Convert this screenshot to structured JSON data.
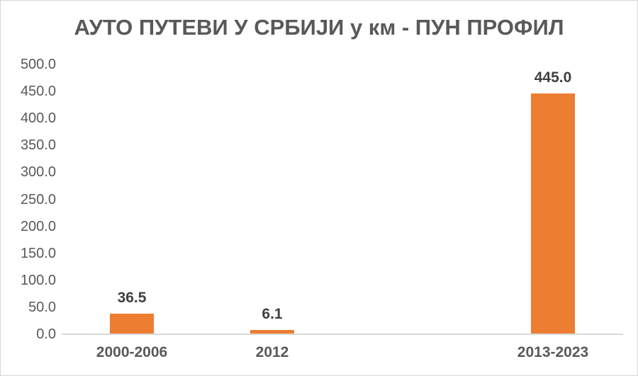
{
  "chart_data": {
    "type": "bar",
    "title": "АУТО ПУТЕВИ У СРБИЈИ у км - ПУН ПРОФИЛ",
    "categories": [
      "2000-2006",
      "2012",
      "2013-2023"
    ],
    "values": [
      36.5,
      6.1,
      445.0
    ],
    "data_labels": [
      "36.5",
      "6.1",
      "445.0"
    ],
    "xlabel": "",
    "ylabel": "",
    "ylim": [
      0,
      500
    ],
    "ytick_step": 50,
    "ytick_labels": [
      "0.0",
      "50.0",
      "100.0",
      "150.0",
      "200.0",
      "250.0",
      "300.0",
      "350.0",
      "400.0",
      "450.0",
      "500.0"
    ],
    "grid": false,
    "legend": "none",
    "layout": {
      "slot_count": 4,
      "category_slots": [
        0,
        1,
        3
      ],
      "bar_color": "#ED7D31",
      "axis_line_color": "#D9D9D9",
      "title_color": "#595959",
      "tick_label_color": "#595959",
      "data_label_color": "#404040",
      "category_label_color": "#595959",
      "background_color": "#FFFFFF"
    }
  }
}
